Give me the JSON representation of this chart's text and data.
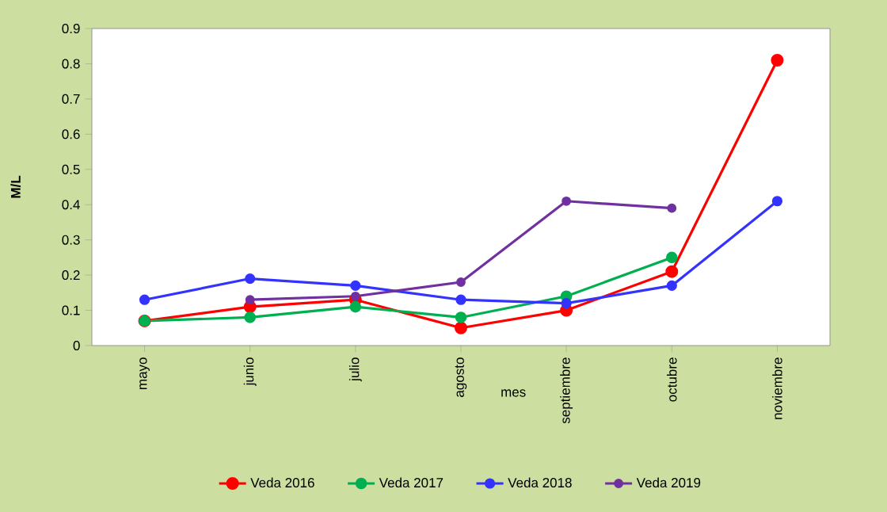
{
  "chart_data": {
    "type": "line",
    "xlabel": "mes",
    "ylabel": "M/L",
    "categories": [
      "mayo",
      "junio",
      "julio",
      "agosto",
      "septiembre",
      "octubre",
      "noviembre"
    ],
    "series": [
      {
        "name": "Veda 2016",
        "color": "#ff0000",
        "values": [
          0.07,
          0.11,
          0.13,
          0.05,
          0.1,
          0.21,
          0.81
        ]
      },
      {
        "name": "Veda 2017",
        "color": "#00b050",
        "values": [
          0.07,
          0.08,
          0.11,
          0.08,
          0.14,
          0.25,
          null
        ]
      },
      {
        "name": "Veda 2018",
        "color": "#3333ff",
        "values": [
          0.13,
          0.19,
          0.17,
          0.13,
          0.12,
          0.17,
          0.41
        ]
      },
      {
        "name": "Veda 2019",
        "color": "#7030a0",
        "values": [
          null,
          0.13,
          0.14,
          0.18,
          0.41,
          0.39,
          null
        ]
      }
    ],
    "ylim": [
      0,
      0.9
    ],
    "yticks": [
      0,
      0.1,
      0.2,
      0.3,
      0.4,
      0.5,
      0.6,
      0.7,
      0.8,
      0.9
    ],
    "grid": false,
    "legend": "bottom",
    "marker": "circle",
    "line_style": "solid"
  }
}
